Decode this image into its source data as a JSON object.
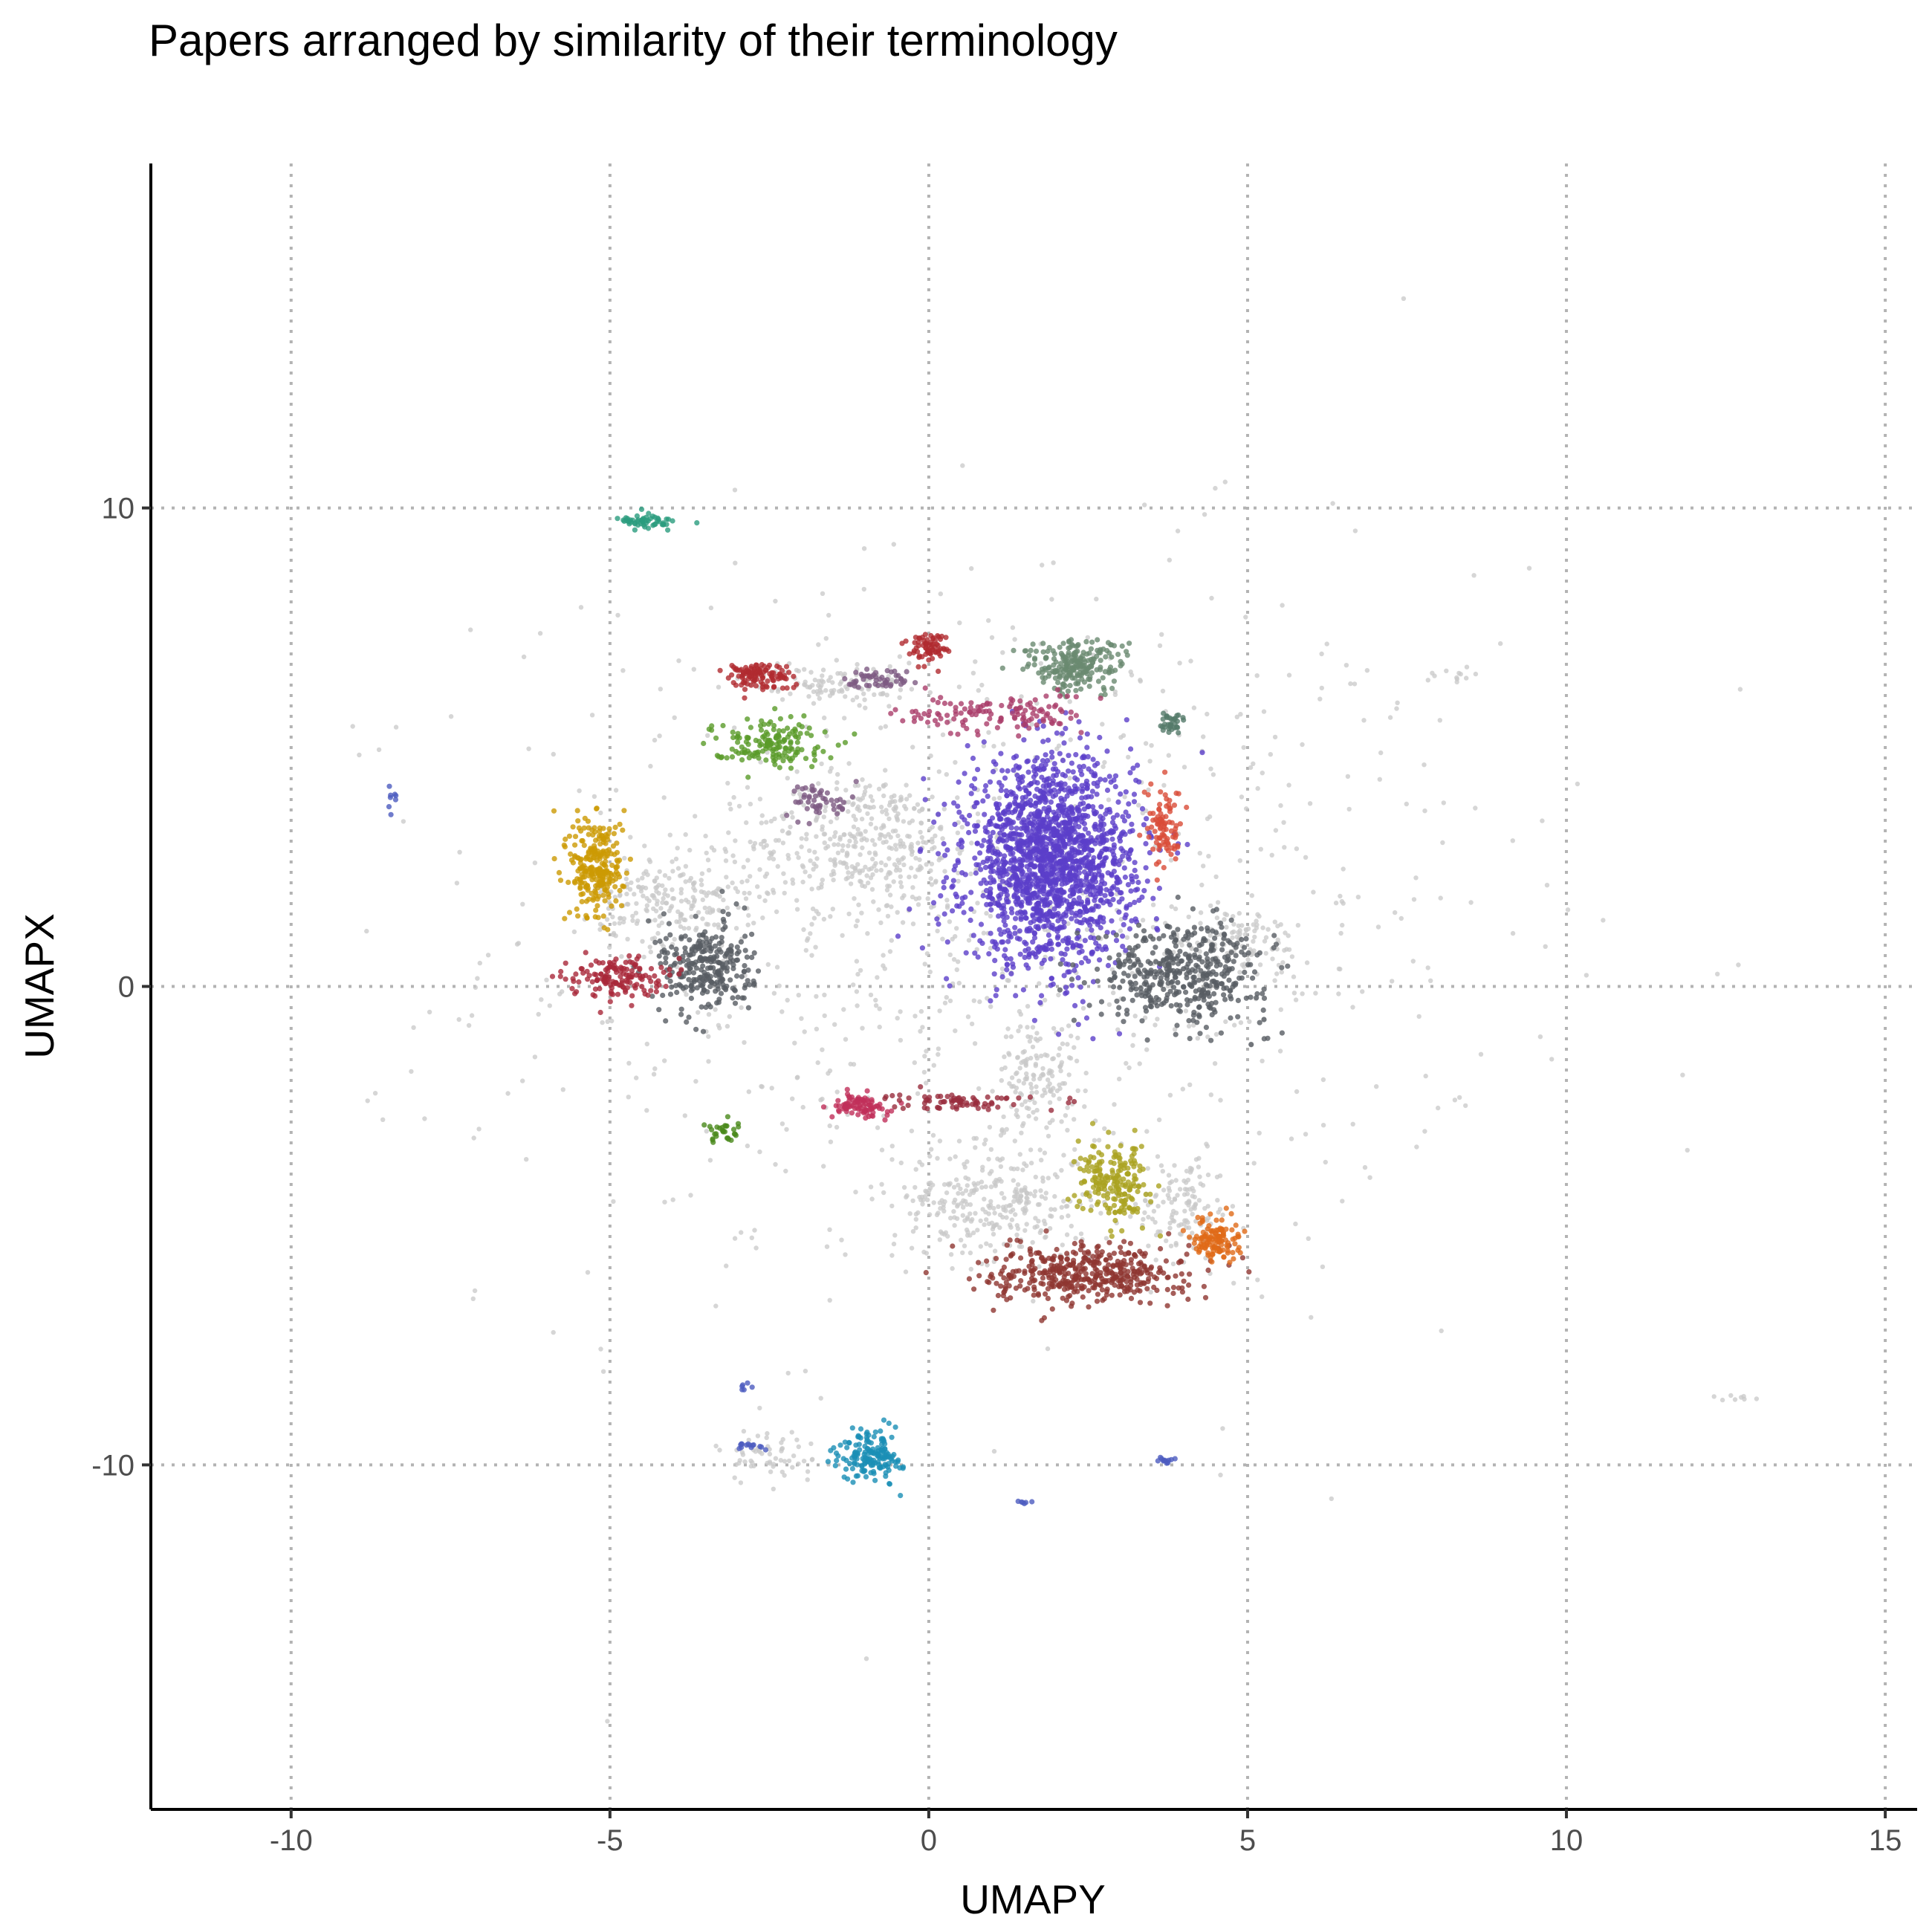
{
  "chart_data": {
    "type": "scatter",
    "title": "Papers arranged by similarity of their terminology",
    "xlabel": "UMAPY",
    "ylabel": "UMAPX",
    "xlim": [
      -12.2,
      15.5
    ],
    "ylim": [
      -17.2,
      17.2
    ],
    "xticks": [
      -10,
      -5,
      0,
      5,
      10,
      15
    ],
    "xtick_labels": [
      "-10",
      "-5",
      "0",
      "5",
      "10",
      "15"
    ],
    "yticks": [
      -10,
      0,
      10
    ],
    "ytick_labels": [
      "-10",
      "0",
      "10"
    ],
    "grid": true,
    "grid_style": "dotted",
    "legend": "none",
    "background_color": "#c8c8c8",
    "clusters": [
      {
        "color": "#5b3fc9",
        "center": [
          1.9,
          2.6
        ],
        "spread": [
          1.1,
          1.75
        ],
        "n": 1800
      },
      {
        "color": "#575d63",
        "center": [
          4.0,
          0.3
        ],
        "spread": [
          1.1,
          0.85
        ],
        "n": 430
      },
      {
        "color": "#575d63",
        "center": [
          -3.5,
          0.4
        ],
        "spread": [
          0.6,
          0.8
        ],
        "n": 280
      },
      {
        "color": "#cc9a04",
        "center": [
          -5.2,
          2.5
        ],
        "spread": [
          0.35,
          0.9
        ],
        "n": 260
      },
      {
        "color": "#a9283a",
        "center": [
          -4.9,
          0.2
        ],
        "spread": [
          0.6,
          0.35
        ],
        "n": 150
      },
      {
        "color": "#5a9b29",
        "center": [
          -2.5,
          5.1
        ],
        "spread": [
          0.75,
          0.4
        ],
        "n": 160
      },
      {
        "color": "#b02a30",
        "center": [
          -2.7,
          6.5
        ],
        "spread": [
          0.45,
          0.25
        ],
        "n": 110
      },
      {
        "color": "#b02a30",
        "center": [
          0.0,
          7.1
        ],
        "spread": [
          0.25,
          0.25
        ],
        "n": 70
      },
      {
        "color": "#6a8a70",
        "center": [
          2.3,
          6.7
        ],
        "spread": [
          0.65,
          0.45
        ],
        "n": 230
      },
      {
        "color": "#aa3d6a",
        "center": [
          1.0,
          5.7
        ],
        "spread": [
          1.2,
          0.35
        ],
        "n": 130
      },
      {
        "color": "#7d5a82",
        "center": [
          -0.7,
          6.4
        ],
        "spread": [
          0.5,
          0.2
        ],
        "n": 50
      },
      {
        "color": "#7d5a82",
        "center": [
          -1.7,
          3.9
        ],
        "spread": [
          0.4,
          0.3
        ],
        "n": 50
      },
      {
        "color": "#557a6a",
        "center": [
          3.8,
          5.5
        ],
        "spread": [
          0.2,
          0.2
        ],
        "n": 35
      },
      {
        "color": "#d94c38",
        "center": [
          3.7,
          3.3
        ],
        "spread": [
          0.22,
          0.7
        ],
        "n": 90
      },
      {
        "color": "#2b9c7e",
        "center": [
          -4.4,
          9.7
        ],
        "spread": [
          0.4,
          0.12
        ],
        "n": 55
      },
      {
        "color": "#c0305a",
        "center": [
          -1.1,
          -2.5
        ],
        "spread": [
          0.35,
          0.2
        ],
        "n": 90
      },
      {
        "color": "#982d3d",
        "center": [
          0.5,
          -2.4
        ],
        "spread": [
          0.9,
          0.15
        ],
        "n": 75
      },
      {
        "color": "#aaa221",
        "center": [
          2.9,
          -4.1
        ],
        "spread": [
          0.45,
          0.65
        ],
        "n": 200
      },
      {
        "color": "#8f3631",
        "center": [
          2.5,
          -6.0
        ],
        "spread": [
          1.3,
          0.5
        ],
        "n": 440
      },
      {
        "color": "#e06a18",
        "center": [
          4.5,
          -5.3
        ],
        "spread": [
          0.3,
          0.35
        ],
        "n": 120
      },
      {
        "color": "#1a8eb5",
        "center": [
          -0.9,
          -9.8
        ],
        "spread": [
          0.4,
          0.45
        ],
        "n": 160
      },
      {
        "color": "#4a8a1c",
        "center": [
          -3.2,
          -3.0
        ],
        "spread": [
          0.3,
          0.2
        ],
        "n": 30
      },
      {
        "color": "#4c5bbf",
        "center": [
          -2.8,
          -9.6
        ],
        "spread": [
          0.25,
          0.08
        ],
        "n": 14
      },
      {
        "color": "#4c5bbf",
        "center": [
          3.7,
          -9.9
        ],
        "spread": [
          0.25,
          0.08
        ],
        "n": 12
      },
      {
        "color": "#4c5bbf",
        "center": [
          -8.4,
          4.0
        ],
        "spread": [
          0.1,
          0.3
        ],
        "n": 8
      },
      {
        "color": "#4c5bbf",
        "center": [
          1.5,
          -10.8
        ],
        "spread": [
          0.1,
          0.05
        ],
        "n": 6
      },
      {
        "color": "#4c5bbf",
        "center": [
          -2.9,
          -8.4
        ],
        "spread": [
          0.1,
          0.1
        ],
        "n": 6
      }
    ],
    "background_noise": [
      {
        "center": [
          1.0,
          1.0
        ],
        "spread": [
          6.5,
          6.5
        ],
        "n": 900
      },
      {
        "center": [
          -1.0,
          3.0
        ],
        "spread": [
          1.5,
          1.2
        ],
        "n": 380
      },
      {
        "center": [
          1.0,
          -4.5
        ],
        "spread": [
          1.3,
          1.0
        ],
        "n": 300
      },
      {
        "center": [
          1.7,
          -1.8
        ],
        "spread": [
          0.5,
          0.9
        ],
        "n": 120
      },
      {
        "center": [
          -1.5,
          6.3
        ],
        "spread": [
          1.0,
          0.3
        ],
        "n": 100
      },
      {
        "center": [
          -2.5,
          -9.8
        ],
        "spread": [
          0.7,
          0.5
        ],
        "n": 60
      },
      {
        "center": [
          -4.0,
          1.8
        ],
        "spread": [
          1.0,
          0.8
        ],
        "n": 200
      },
      {
        "center": [
          4.8,
          0.9
        ],
        "spread": [
          1.0,
          0.6
        ],
        "n": 110
      },
      {
        "center": [
          4.0,
          -4.6
        ],
        "spread": [
          0.6,
          0.9
        ],
        "n": 120
      },
      {
        "center": [
          8.2,
          6.5
        ],
        "spread": [
          0.3,
          0.1
        ],
        "n": 12
      },
      {
        "center": [
          12.7,
          -8.6
        ],
        "spread": [
          0.2,
          0.1
        ],
        "n": 8
      }
    ]
  }
}
